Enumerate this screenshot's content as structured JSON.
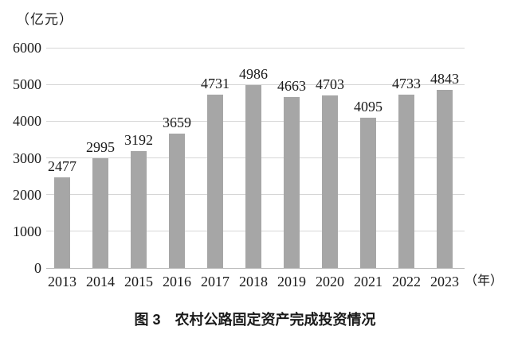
{
  "figure": {
    "caption": "图 3　农村公路固定资产完成投资情况",
    "y_unit_label": "（亿元）",
    "x_unit_label": "（年）"
  },
  "colors": {
    "bar": "#a6a6a6",
    "gridline": "#d6d6d6",
    "baseline": "#bdbdbd",
    "text": "#1a1a1a",
    "background": "#ffffff"
  },
  "chart_data": {
    "type": "bar",
    "title": "图 3　农村公路固定资产完成投资情况",
    "categories": [
      "2013",
      "2014",
      "2015",
      "2016",
      "2017",
      "2018",
      "2019",
      "2020",
      "2021",
      "2022",
      "2023"
    ],
    "values": [
      2477,
      2995,
      3192,
      3659,
      4731,
      4986,
      4663,
      4703,
      4095,
      4733,
      4843
    ],
    "xlabel": "（年）",
    "ylabel": "（亿元）",
    "ylim": [
      0,
      6000
    ],
    "ytick_step": 1000,
    "yticks": [
      0,
      1000,
      2000,
      3000,
      4000,
      5000,
      6000
    ],
    "grid": true,
    "legend": false,
    "data_labels": true
  }
}
